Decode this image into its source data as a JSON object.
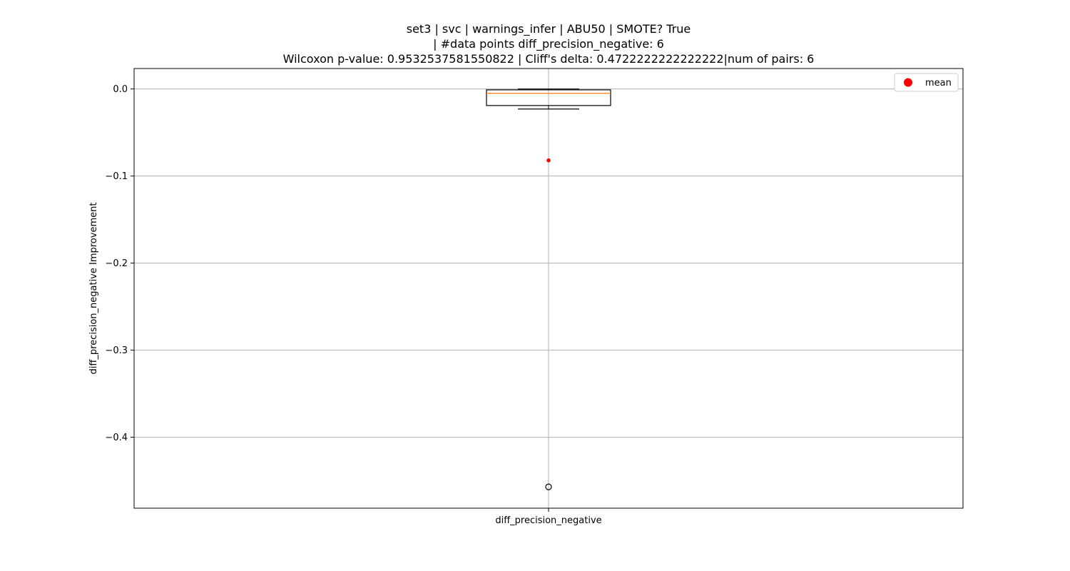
{
  "chart_data": {
    "type": "box",
    "title_lines": [
      "set3 | svc | warnings_infer | ABU50 | SMOTE? True",
      "| #data points diff_precision_negative: 6",
      "Wilcoxon p-value: 0.9532537581550822 | Cliff's delta: 0.4722222222222222|num of pairs: 6"
    ],
    "ylabel": "diff_precision_negative Improvement",
    "categories": [
      "diff_precision_negative"
    ],
    "ylim": [
      -0.4815,
      0.0235
    ],
    "yticks": [
      0.0,
      -0.1,
      -0.2,
      -0.3,
      -0.4
    ],
    "ytick_labels": [
      "0.0",
      "−0.1",
      "−0.2",
      "−0.3",
      "−0.4"
    ],
    "grid": true,
    "legend": {
      "position": "top-right",
      "entries": [
        {
          "label": "mean",
          "marker": "circle",
          "color": "#ff0000"
        }
      ]
    },
    "boxes": [
      {
        "category": "diff_precision_negative",
        "whisker_low": -0.023,
        "q1": -0.019,
        "median": -0.005,
        "q3": -0.001,
        "whisker_high": 0.0,
        "outliers": [
          -0.457
        ],
        "mean": -0.082
      }
    ],
    "colors": {
      "box": "#000000",
      "median": "#ff7f0e",
      "mean": "#ff0000",
      "grid": "#b0b0b0"
    }
  }
}
